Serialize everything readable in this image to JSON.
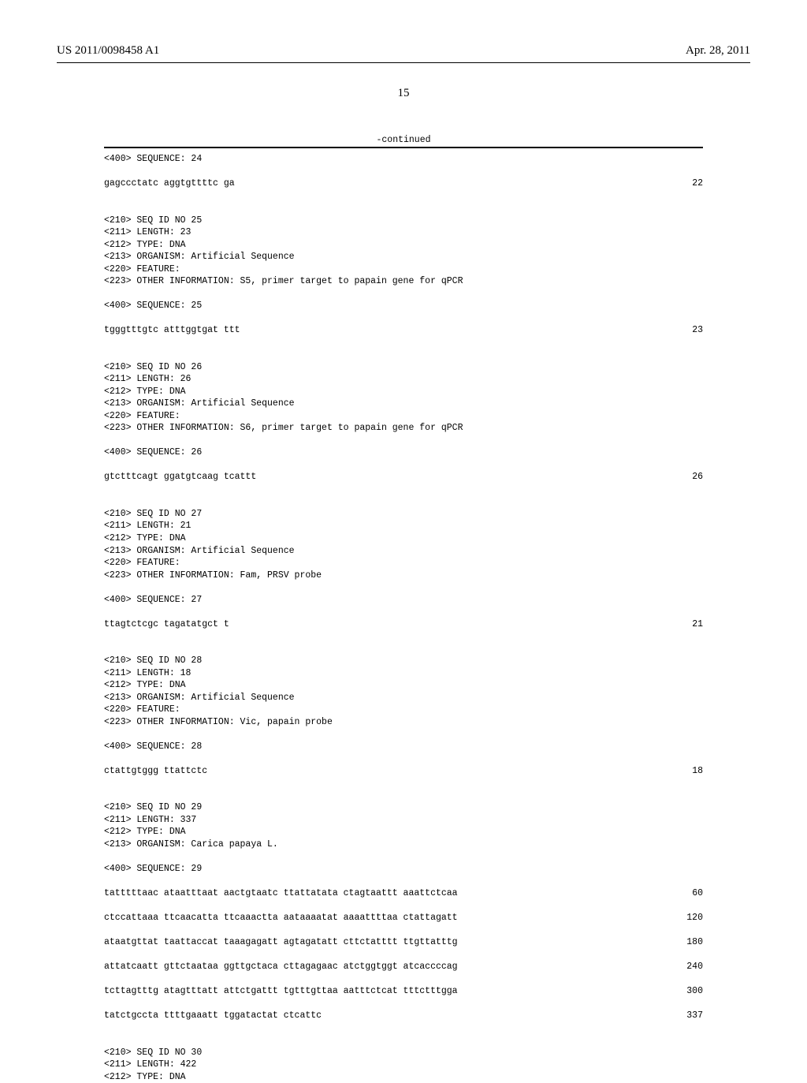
{
  "header": {
    "left": "US 2011/0098458 A1",
    "right": "Apr. 28, 2011"
  },
  "page_number": "15",
  "continued_label": "-continued",
  "entries": [
    {
      "type": "tag",
      "text": "<400> SEQUENCE: 24"
    },
    {
      "type": "gap"
    },
    {
      "type": "seq",
      "text": "gagccctatc aggtgttttc ga",
      "num": "22"
    },
    {
      "type": "biggap"
    },
    {
      "type": "tag",
      "text": "<210> SEQ ID NO 25"
    },
    {
      "type": "tag",
      "text": "<211> LENGTH: 23"
    },
    {
      "type": "tag",
      "text": "<212> TYPE: DNA"
    },
    {
      "type": "tag",
      "text": "<213> ORGANISM: Artificial Sequence"
    },
    {
      "type": "tag",
      "text": "<220> FEATURE:"
    },
    {
      "type": "tag",
      "text": "<223> OTHER INFORMATION: S5, primer target to papain gene for qPCR"
    },
    {
      "type": "gap"
    },
    {
      "type": "tag",
      "text": "<400> SEQUENCE: 25"
    },
    {
      "type": "gap"
    },
    {
      "type": "seq",
      "text": "tgggtttgtc atttggtgat ttt",
      "num": "23"
    },
    {
      "type": "biggap"
    },
    {
      "type": "tag",
      "text": "<210> SEQ ID NO 26"
    },
    {
      "type": "tag",
      "text": "<211> LENGTH: 26"
    },
    {
      "type": "tag",
      "text": "<212> TYPE: DNA"
    },
    {
      "type": "tag",
      "text": "<213> ORGANISM: Artificial Sequence"
    },
    {
      "type": "tag",
      "text": "<220> FEATURE:"
    },
    {
      "type": "tag",
      "text": "<223> OTHER INFORMATION: S6, primer target to papain gene for qPCR"
    },
    {
      "type": "gap"
    },
    {
      "type": "tag",
      "text": "<400> SEQUENCE: 26"
    },
    {
      "type": "gap"
    },
    {
      "type": "seq",
      "text": "gtctttcagt ggatgtcaag tcattt",
      "num": "26"
    },
    {
      "type": "biggap"
    },
    {
      "type": "tag",
      "text": "<210> SEQ ID NO 27"
    },
    {
      "type": "tag",
      "text": "<211> LENGTH: 21"
    },
    {
      "type": "tag",
      "text": "<212> TYPE: DNA"
    },
    {
      "type": "tag",
      "text": "<213> ORGANISM: Artificial Sequence"
    },
    {
      "type": "tag",
      "text": "<220> FEATURE:"
    },
    {
      "type": "tag",
      "text": "<223> OTHER INFORMATION: Fam, PRSV probe"
    },
    {
      "type": "gap"
    },
    {
      "type": "tag",
      "text": "<400> SEQUENCE: 27"
    },
    {
      "type": "gap"
    },
    {
      "type": "seq",
      "text": "ttagtctcgc tagatatgct t",
      "num": "21"
    },
    {
      "type": "biggap"
    },
    {
      "type": "tag",
      "text": "<210> SEQ ID NO 28"
    },
    {
      "type": "tag",
      "text": "<211> LENGTH: 18"
    },
    {
      "type": "tag",
      "text": "<212> TYPE: DNA"
    },
    {
      "type": "tag",
      "text": "<213> ORGANISM: Artificial Sequence"
    },
    {
      "type": "tag",
      "text": "<220> FEATURE:"
    },
    {
      "type": "tag",
      "text": "<223> OTHER INFORMATION: Vic, papain probe"
    },
    {
      "type": "gap"
    },
    {
      "type": "tag",
      "text": "<400> SEQUENCE: 28"
    },
    {
      "type": "gap"
    },
    {
      "type": "seq",
      "text": "ctattgtggg ttattctc",
      "num": "18"
    },
    {
      "type": "biggap"
    },
    {
      "type": "tag",
      "text": "<210> SEQ ID NO 29"
    },
    {
      "type": "tag",
      "text": "<211> LENGTH: 337"
    },
    {
      "type": "tag",
      "text": "<212> TYPE: DNA"
    },
    {
      "type": "tag",
      "text": "<213> ORGANISM: Carica papaya L."
    },
    {
      "type": "gap"
    },
    {
      "type": "tag",
      "text": "<400> SEQUENCE: 29"
    },
    {
      "type": "gap"
    },
    {
      "type": "seq",
      "text": "tatttttaac ataatttaat aactgtaatc ttattatata ctagtaattt aaattctcaa",
      "num": "60"
    },
    {
      "type": "gap"
    },
    {
      "type": "seq",
      "text": "ctccattaaa ttcaacatta ttcaaactta aataaaatat aaaattttaa ctattagatt",
      "num": "120"
    },
    {
      "type": "gap"
    },
    {
      "type": "seq",
      "text": "ataatgttat taattaccat taaagagatt agtagatatt cttctatttt ttgttatttg",
      "num": "180"
    },
    {
      "type": "gap"
    },
    {
      "type": "seq",
      "text": "attatcaatt gttctaataa ggttgctaca cttagagaac atctggtggt atcaccccag",
      "num": "240"
    },
    {
      "type": "gap"
    },
    {
      "type": "seq",
      "text": "tcttagtttg atagtttatt attctgattt tgtttgttaa aatttctcat tttctttgga",
      "num": "300"
    },
    {
      "type": "gap"
    },
    {
      "type": "seq",
      "text": "tatctgccta ttttgaaatt tggatactat ctcattc",
      "num": "337"
    },
    {
      "type": "biggap"
    },
    {
      "type": "tag",
      "text": "<210> SEQ ID NO 30"
    },
    {
      "type": "tag",
      "text": "<211> LENGTH: 422"
    },
    {
      "type": "tag",
      "text": "<212> TYPE: DNA"
    }
  ]
}
